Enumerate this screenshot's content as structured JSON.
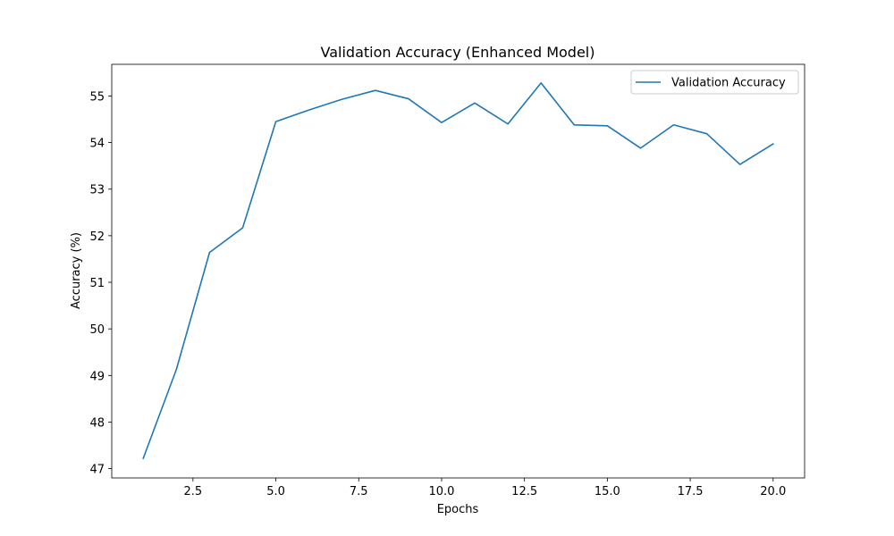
{
  "chart_data": {
    "type": "line",
    "title": "Validation Accuracy (Enhanced Model)",
    "xlabel": "Epochs",
    "ylabel": "Accuracy (%)",
    "xlim": [
      0.05,
      20.95
    ],
    "ylim": [
      46.8,
      55.68
    ],
    "xticks": [
      2.5,
      5.0,
      7.5,
      10.0,
      12.5,
      15.0,
      17.5,
      20.0
    ],
    "xtick_labels": [
      "2.5",
      "5.0",
      "7.5",
      "10.0",
      "12.5",
      "15.0",
      "17.5",
      "20.0"
    ],
    "yticks": [
      47,
      48,
      49,
      50,
      51,
      52,
      53,
      54,
      55
    ],
    "ytick_labels": [
      "47",
      "48",
      "49",
      "50",
      "51",
      "52",
      "53",
      "54",
      "55"
    ],
    "grid": false,
    "legend_position": "top-right",
    "series": [
      {
        "name": "Validation Accuracy",
        "color": "#1f77b4",
        "x": [
          1,
          2,
          3,
          4,
          5,
          6,
          7,
          8,
          9,
          10,
          11,
          12,
          13,
          14,
          15,
          16,
          17,
          18,
          19,
          20
        ],
        "values": [
          47.22,
          49.13,
          51.64,
          52.17,
          54.45,
          54.7,
          54.93,
          55.12,
          54.94,
          54.43,
          54.85,
          54.4,
          55.28,
          54.38,
          54.36,
          53.88,
          54.38,
          54.19,
          53.53,
          53.97
        ]
      }
    ]
  }
}
